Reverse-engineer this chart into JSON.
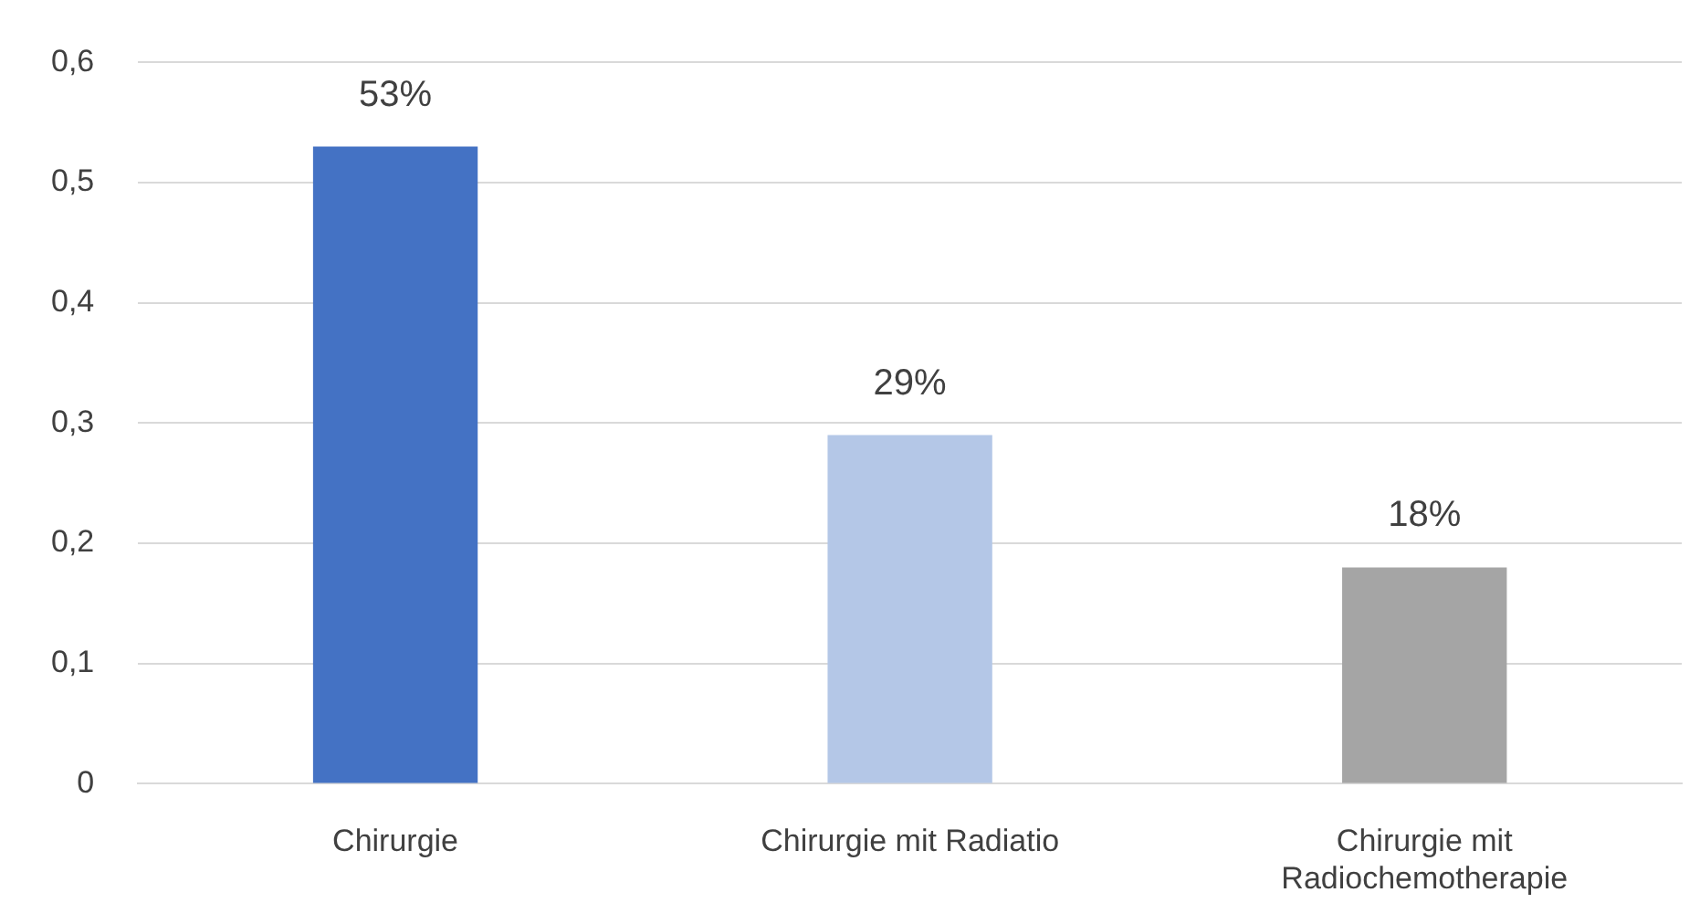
{
  "chart_data": {
    "type": "bar",
    "categories": [
      "Chirurgie",
      "Chirurgie mit Radiatio",
      "Chirurgie mit Radiochemotherapie"
    ],
    "values": [
      0.53,
      0.29,
      0.18
    ],
    "colors": [
      "#4472c4",
      "#b4c7e7",
      "#a5a5a5"
    ],
    "value_labels": [
      "53%",
      "29%",
      "18%"
    ],
    "ylim": [
      0,
      0.6
    ],
    "yticks": [
      {
        "value": 0,
        "label": "0"
      },
      {
        "value": 0.1,
        "label": "0,1"
      },
      {
        "value": 0.2,
        "label": "0,2"
      },
      {
        "value": 0.3,
        "label": "0,3"
      },
      {
        "value": 0.4,
        "label": "0,4"
      },
      {
        "value": 0.5,
        "label": "0,5"
      },
      {
        "value": 0.6,
        "label": "0,6"
      }
    ],
    "grid": "y",
    "legend": false
  }
}
